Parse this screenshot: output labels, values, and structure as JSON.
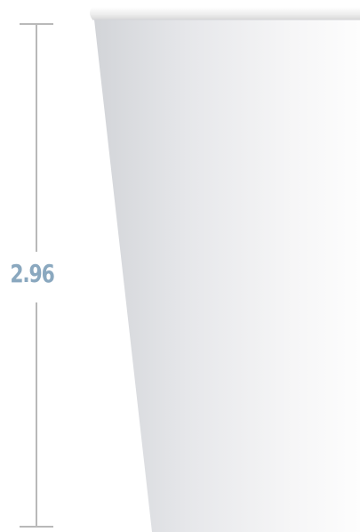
{
  "dimension": {
    "height_label": "2.96"
  },
  "colors": {
    "label": "#8aa8bf",
    "dimension_line": "#b9b9b9",
    "cup_body_dark": "#d6d8dc",
    "cup_body_light": "#fdfdfd",
    "cup_rim": "#e8e8e8"
  },
  "icons": {
    "measurement": "dimension-line-icon",
    "product": "paper-cup-illustration"
  }
}
